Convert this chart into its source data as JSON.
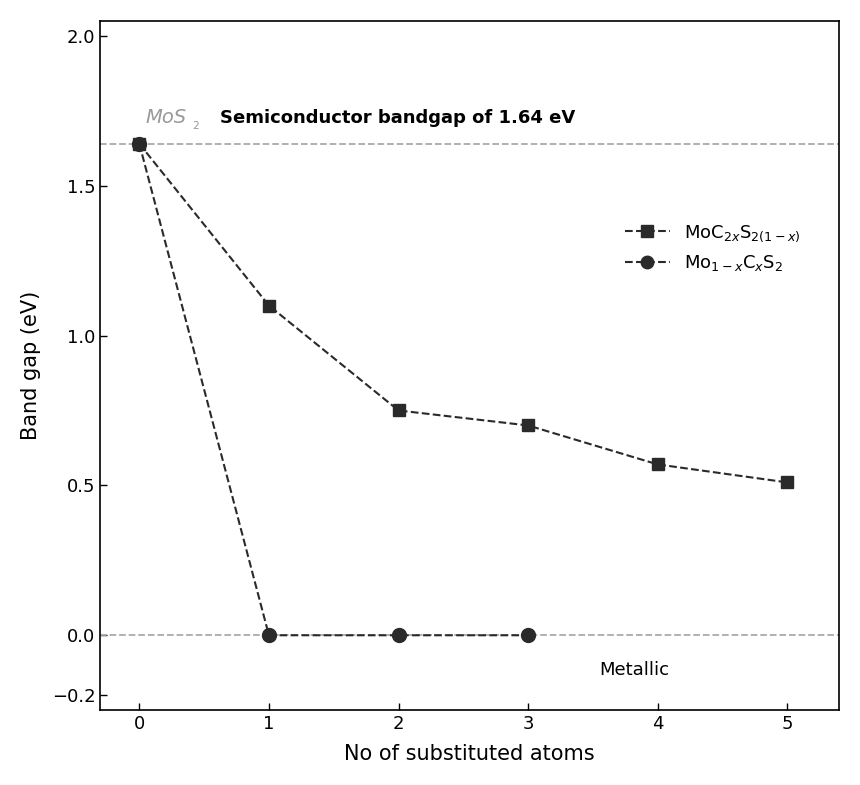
{
  "series1_x": [
    0,
    1,
    2,
    3,
    4,
    5
  ],
  "series1_y": [
    1.64,
    1.1,
    0.75,
    0.7,
    0.57,
    0.51
  ],
  "series2_x": [
    0,
    1,
    2,
    3
  ],
  "series2_y": [
    1.64,
    0.0,
    0.0,
    0.0
  ],
  "hline1_y": 1.64,
  "hline2_y": 0.0,
  "xlabel": "No of substituted atoms",
  "ylabel": "Band gap (eV)",
  "ylim": [
    -0.25,
    2.05
  ],
  "xlim": [
    -0.3,
    5.4
  ],
  "yticks": [
    -0.2,
    0.0,
    0.5,
    1.0,
    1.5,
    2.0
  ],
  "xticks": [
    0,
    1,
    2,
    3,
    4,
    5
  ],
  "annotation_semiconductor": "Semiconductor bandgap of 1.64 eV",
  "annotation_metallic": "Metallic",
  "legend1_label": "MoC$_{2x}$S$_{2(1-x)}$",
  "legend2_label": "Mo$_{1-x}$C$_{x}$S$_{2}$",
  "color_line": "#2a2a2a",
  "color_hline": "#aaaaaa",
  "color_mos2": "#999999",
  "figsize": [
    8.6,
    7.85
  ],
  "dpi": 100
}
